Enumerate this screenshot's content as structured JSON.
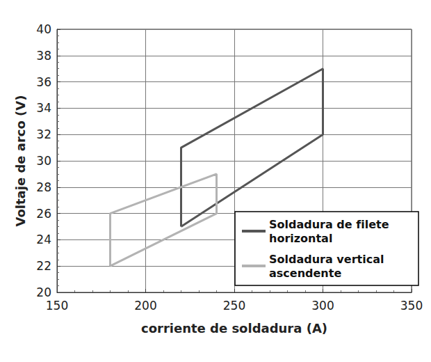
{
  "chart_data": {
    "type": "line",
    "x_label": "corriente de soldadura (A)",
    "y_label": "Voltaje de arco (V)",
    "xlim": [
      150,
      350
    ],
    "xticks": [
      150,
      200,
      250,
      300,
      350
    ],
    "ylim": [
      20,
      40
    ],
    "yticks": [
      20,
      22,
      24,
      26,
      28,
      30,
      32,
      34,
      36,
      38,
      40
    ],
    "grid": true,
    "legend": "lower right",
    "series": [
      {
        "name": "Soldadura de filete horizontal",
        "color": "#555555",
        "x": [
          220,
          220,
          300,
          300,
          220
        ],
        "values": [
          25,
          31,
          37,
          32,
          25
        ]
      },
      {
        "name": "Soldadura vertical ascendente",
        "color": "#b3b3b3",
        "x": [
          180,
          180,
          240,
          240,
          180
        ],
        "values": [
          22,
          26,
          29,
          26,
          22
        ]
      }
    ]
  }
}
